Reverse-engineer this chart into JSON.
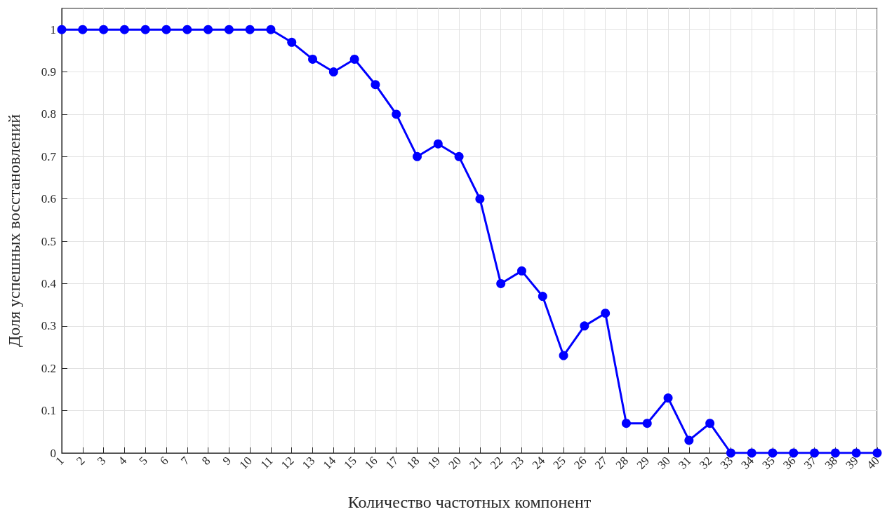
{
  "chart_data": {
    "type": "line",
    "xlabel": "Количество частотных компонент",
    "ylabel": "Доля успешных восстановлений",
    "x": [
      1,
      2,
      3,
      4,
      5,
      6,
      7,
      8,
      9,
      10,
      11,
      12,
      13,
      14,
      15,
      16,
      17,
      18,
      19,
      20,
      21,
      22,
      23,
      24,
      25,
      26,
      27,
      28,
      29,
      30,
      31,
      32,
      33,
      34,
      35,
      36,
      37,
      38,
      39,
      40
    ],
    "series": [
      {
        "color": "#0000ff",
        "values": [
          1,
          1,
          1,
          1,
          1,
          1,
          1,
          1,
          1,
          1,
          1,
          0.97,
          0.93,
          0.9,
          0.93,
          0.87,
          0.8,
          0.7,
          0.73,
          0.7,
          0.6,
          0.4,
          0.43,
          0.37,
          0.23,
          0.3,
          0.33,
          0.07,
          0.07,
          0.13,
          0.03,
          0.07,
          0,
          0,
          0,
          0,
          0,
          0,
          0,
          0
        ]
      }
    ],
    "xlim": [
      1,
      40
    ],
    "xticks": [
      1,
      2,
      3,
      4,
      5,
      6,
      7,
      8,
      9,
      10,
      11,
      12,
      13,
      14,
      15,
      16,
      17,
      18,
      19,
      20,
      21,
      22,
      23,
      24,
      25,
      26,
      27,
      28,
      29,
      30,
      31,
      32,
      33,
      34,
      35,
      36,
      37,
      38,
      39,
      40
    ],
    "ylim": [
      0,
      1.05
    ],
    "yticks": [
      0,
      0.1,
      0.2,
      0.3,
      0.4,
      0.5,
      0.6,
      0.7,
      0.8,
      0.9,
      1
    ],
    "grid": true,
    "marker": "circle",
    "line_style": "solid"
  }
}
